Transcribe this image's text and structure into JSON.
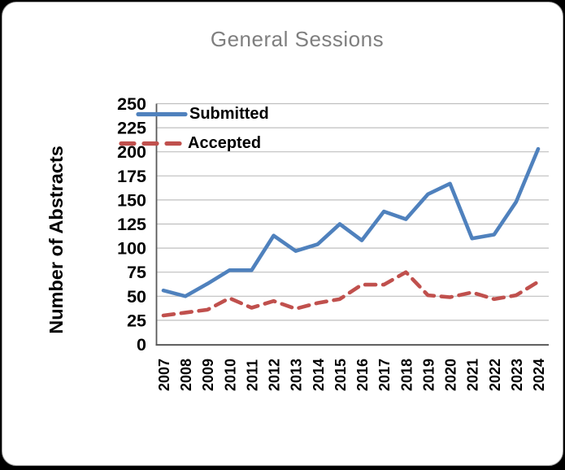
{
  "window": {
    "background_color": "#000000",
    "card_background": "#ffffff"
  },
  "chart_data": {
    "type": "line",
    "title": "General Sessions",
    "title_color": "#7f7f7f",
    "xlabel": "",
    "ylabel": "Number of Abstracts",
    "categories": [
      "2007",
      "2008",
      "2009",
      "2010",
      "2011",
      "2012",
      "2013",
      "2014",
      "2015",
      "2016",
      "2017",
      "2018",
      "2019",
      "2020",
      "2021",
      "2022",
      "2023",
      "2024"
    ],
    "y_ticks": [
      0,
      25,
      50,
      75,
      100,
      125,
      150,
      175,
      200,
      225,
      250
    ],
    "ylim": [
      0,
      250
    ],
    "grid": true,
    "gridline_color": "#bfbfbf",
    "axis_color": "#595959",
    "legend_position": "top-left-inside",
    "series": [
      {
        "name": "Submitted",
        "color": "#4f81bd",
        "style": "solid",
        "values": [
          56,
          50,
          63,
          77,
          77,
          113,
          97,
          104,
          125,
          108,
          138,
          130,
          156,
          167,
          110,
          114,
          148,
          203
        ]
      },
      {
        "name": "Accepted",
        "color": "#c0504d",
        "style": "dashed",
        "values": [
          30,
          33,
          36,
          48,
          38,
          45,
          37,
          43,
          47,
          62,
          62,
          75,
          51,
          49,
          54,
          47,
          51,
          65
        ]
      }
    ]
  }
}
